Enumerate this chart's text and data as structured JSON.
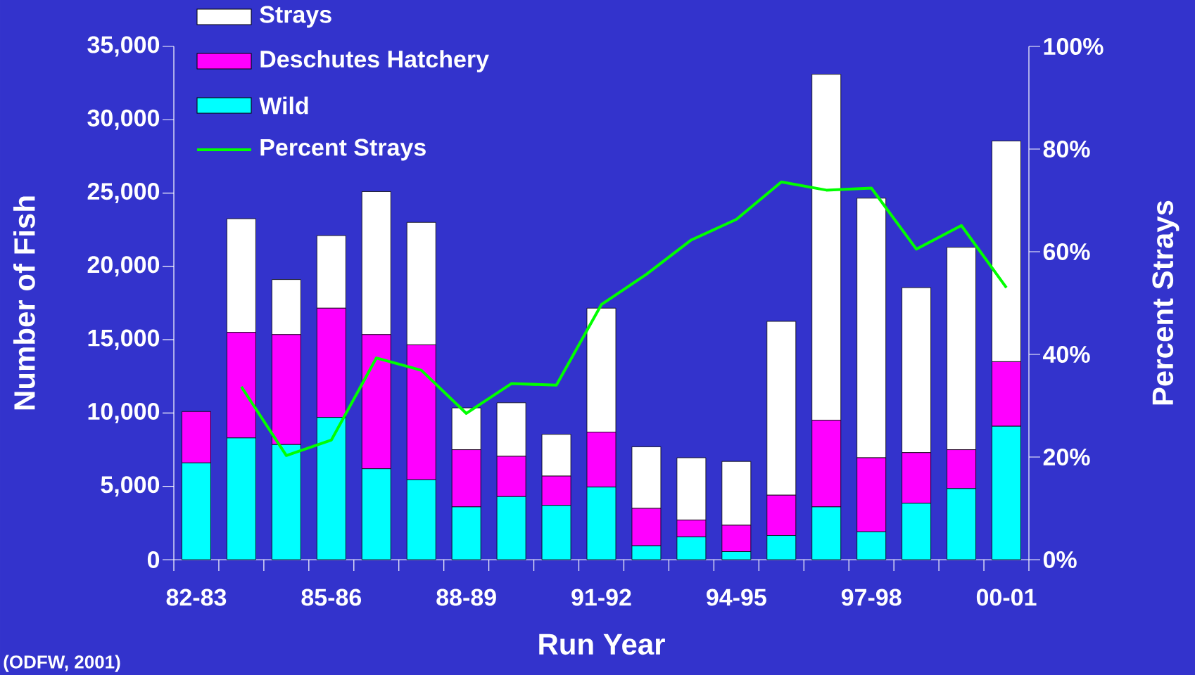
{
  "chart_data": {
    "type": "bar",
    "stacked": true,
    "xlabel": "Run Year",
    "ylabel": "Number of Fish",
    "y2label": "Percent Strays",
    "legend": "top left",
    "marker": "none",
    "annotations": [
      "(ODFW, 2001)"
    ],
    "categories": [
      "82-83",
      null,
      null,
      "85-86",
      null,
      null,
      "88-89",
      null,
      null,
      "91-92",
      null,
      null,
      "94-95",
      null,
      null,
      "97-98",
      null,
      null,
      "00-01"
    ],
    "ylim": [
      0,
      35000
    ],
    "yticks": [
      0,
      {
        "value": 5000,
        "label": "5,000"
      },
      {
        "value": 10000,
        "label": "10,000"
      },
      {
        "value": 15000,
        "label": "15,000"
      },
      {
        "value": 20000,
        "label": "20,000"
      },
      {
        "value": 25000,
        "label": "25,000"
      },
      {
        "value": 30000,
        "label": "30,000"
      },
      {
        "value": 35000,
        "label": "35,000"
      }
    ],
    "y2lim": [
      0,
      100
    ],
    "y2ticks": [
      {
        "value": 0,
        "label": "0%"
      },
      {
        "value": 20,
        "label": "20%"
      },
      {
        "value": 40,
        "label": "40%"
      },
      {
        "value": 60,
        "label": "60%"
      },
      {
        "value": 80,
        "label": "80%"
      },
      {
        "value": 100,
        "label": "100%"
      }
    ],
    "series": [
      {
        "name": "Wild",
        "type": "bar",
        "color": "#00ffff",
        "values": [
          6600,
          8300,
          7850,
          9700,
          6200,
          5450,
          3600,
          4300,
          3700,
          4950,
          950,
          1550,
          550,
          1650,
          3600,
          1900,
          3850,
          4850,
          9100
        ]
      },
      {
        "name": "Deschutes Hatchery",
        "type": "bar",
        "color": "#ff00ff",
        "values": [
          3500,
          7200,
          7500,
          7450,
          9150,
          9200,
          3900,
          2750,
          2000,
          3750,
          2550,
          1150,
          1800,
          2750,
          5900,
          5050,
          3450,
          2650,
          4400
        ]
      },
      {
        "name": "Strays",
        "type": "bar",
        "color": "#ffffff",
        "values": [
          0,
          7750,
          3750,
          4950,
          9750,
          8350,
          2850,
          3650,
          2850,
          8450,
          4200,
          4250,
          4350,
          11850,
          23600,
          17700,
          11250,
          13800,
          15050
        ]
      },
      {
        "name": "Percent Strays",
        "type": "line",
        "axis": "y2",
        "color": "#00ff00",
        "values": [
          null,
          33.7,
          20.3,
          23.3,
          39.3,
          36.9,
          28.5,
          34.3,
          34.0,
          49.7,
          55.6,
          62.3,
          66.3,
          73.6,
          72.0,
          72.4,
          60.5,
          65.1,
          53.0
        ]
      }
    ]
  }
}
